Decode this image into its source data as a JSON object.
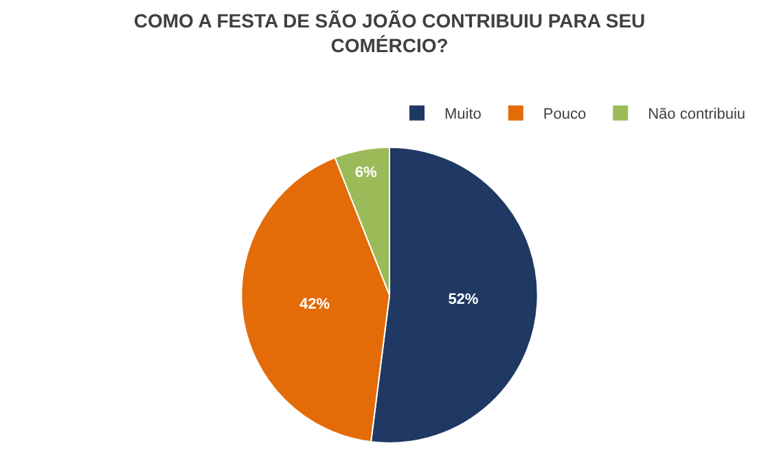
{
  "chart_data": {
    "type": "pie",
    "title": "COMO A FESTA DE SÃO JOÃO CONTRIBUIU PARA SEU COMÉRCIO?",
    "categories": [
      "Muito",
      "Pouco",
      "Não contribuiu"
    ],
    "values": [
      52,
      42,
      6
    ],
    "colors": [
      "#1f3864",
      "#e36c09",
      "#9bbb59"
    ],
    "value_labels": [
      "52%",
      "42%",
      "6%"
    ],
    "legend": "top"
  }
}
